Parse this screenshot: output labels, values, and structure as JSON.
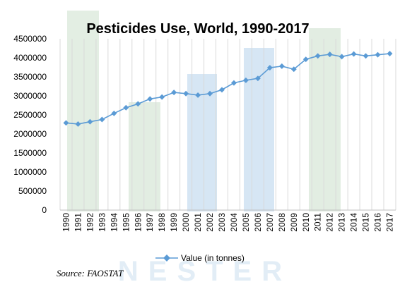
{
  "chart_data": {
    "type": "line",
    "title": "Pesticides Use, World, 1990-2017",
    "xlabel": "",
    "ylabel": "",
    "ylim": [
      0,
      4500000
    ],
    "yticks": [
      "0",
      "500000",
      "1000000",
      "1500000",
      "2000000",
      "2500000",
      "3000000",
      "3500000",
      "4000000",
      "4500000"
    ],
    "grid": "vertical",
    "legend_position": "bottom",
    "categories": [
      "1990",
      "1991",
      "1992",
      "1993",
      "1994",
      "1995",
      "1996",
      "1997",
      "1998",
      "1999",
      "2000",
      "2001",
      "2002",
      "2003",
      "2004",
      "2005",
      "2006",
      "2007",
      "2008",
      "2009",
      "2010",
      "2011",
      "2012",
      "2013",
      "2014",
      "2015",
      "2016",
      "2017"
    ],
    "series": [
      {
        "name": "Value (in tonnes)",
        "color": "#5b9bd5",
        "values": [
          2290000,
          2260000,
          2320000,
          2380000,
          2540000,
          2690000,
          2790000,
          2920000,
          2970000,
          3090000,
          3060000,
          3020000,
          3060000,
          3160000,
          3340000,
          3410000,
          3460000,
          3740000,
          3780000,
          3700000,
          3960000,
          4050000,
          4090000,
          4030000,
          4100000,
          4050000,
          4080000,
          4110000
        ]
      }
    ]
  },
  "source": "Source: FAOSTAT",
  "watermark": "NESTER"
}
